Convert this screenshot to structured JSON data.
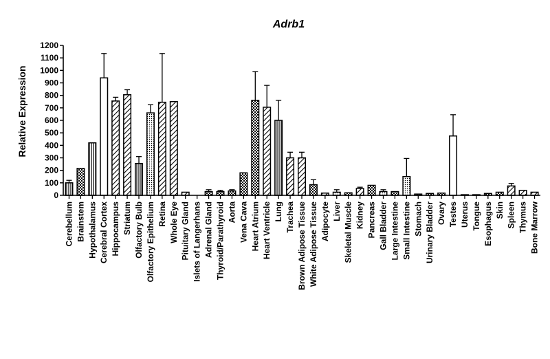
{
  "chart_data": {
    "type": "bar",
    "title": "Adrb1",
    "xlabel": "",
    "ylabel": "Relative Expression",
    "ylim": [
      0,
      1200
    ],
    "yticks": [
      0,
      100,
      200,
      300,
      400,
      500,
      600,
      700,
      800,
      900,
      1000,
      1100,
      1200
    ],
    "grid": false,
    "categories": [
      "Cerebellum",
      "Brainstem",
      "Hypothalamus",
      "Cerebral Cortex",
      "Hippocampus",
      "Striatum",
      "Olfactory Bulb",
      "Olfactory Epithelium",
      "Retina",
      "Whole Eye",
      "Pituitary Gland",
      "Islets of Langerhans",
      "Adrenal Gland",
      "Thyroid/Parathyroid",
      "Aorta",
      "Vena Cava",
      "Heart Atrium",
      "Heart Ventricle",
      "Lung",
      "Trachea",
      "Brown Adipose Tissue",
      "White Adipose Tissue",
      "Adipocyte",
      "Liver",
      "Skeletal Muscle",
      "Kidney",
      "Pancreas",
      "Gall Bladder",
      "Large Intestine",
      "Small Intestine",
      "Stomach",
      "Urinary Bladder",
      "Ovary",
      "Testes",
      "Uterus",
      "Tongue",
      "Esophagus",
      "Skin",
      "Spleen",
      "Thymus",
      "Bone Marrow"
    ],
    "values": [
      100,
      215,
      420,
      940,
      755,
      805,
      255,
      660,
      745,
      750,
      25,
      0,
      30,
      30,
      35,
      180,
      760,
      705,
      600,
      300,
      300,
      85,
      18,
      25,
      20,
      55,
      80,
      30,
      30,
      150,
      10,
      15,
      18,
      475,
      5,
      5,
      15,
      25,
      75,
      40,
      25
    ],
    "errors": [
      20,
      0,
      0,
      195,
      30,
      40,
      55,
      65,
      390,
      0,
      0,
      0,
      15,
      10,
      10,
      0,
      230,
      175,
      160,
      45,
      45,
      40,
      0,
      20,
      0,
      10,
      0,
      15,
      0,
      145,
      0,
      0,
      0,
      170,
      0,
      0,
      0,
      0,
      20,
      0,
      0
    ],
    "patterns": [
      "vlines",
      "checker",
      "vlines",
      "hollow",
      "hatch",
      "hatch",
      "vlines",
      "dots",
      "hatch",
      "hatch",
      "hatch",
      "hatch",
      "checker",
      "checker",
      "checker",
      "checker",
      "checker",
      "hatch",
      "vlines",
      "hatch",
      "hatch",
      "checker",
      "hatch",
      "dots",
      "checker",
      "hatch",
      "checker",
      "dots",
      "checker",
      "dots",
      "checker",
      "checker",
      "checker",
      "hollow",
      "hatch",
      "hatch",
      "checker",
      "checker",
      "hatch",
      "hatch",
      "hatch"
    ]
  }
}
